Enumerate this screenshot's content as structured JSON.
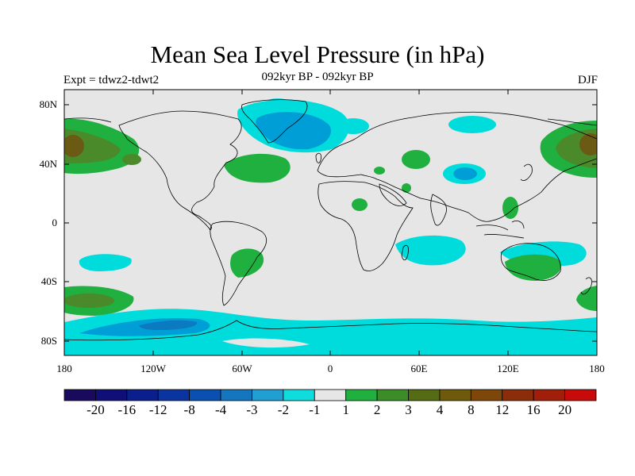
{
  "title": "Mean Sea Level Pressure (in hPa)",
  "subtitle": "092kyr BP - 092kyr BP",
  "experiment": "Expt = tdwz2-tdwt2",
  "season": "DJF",
  "y_ticks": [
    "80N",
    "40N",
    "0",
    "40S",
    "80S"
  ],
  "x_ticks": [
    "180",
    "120W",
    "60W",
    "0",
    "60E",
    "120E",
    "180"
  ],
  "colorbar": {
    "colors": [
      "#1a0a5e",
      "#100f78",
      "#0a1e8e",
      "#0a35a0",
      "#0a50b0",
      "#1576c0",
      "#1f9fd2",
      "#0fdcdc",
      "#e6e6e6",
      "#20b040",
      "#3c8c28",
      "#556b14",
      "#6e5a0a",
      "#7f460a",
      "#8c2d0a",
      "#a01e0a",
      "#c80a0a"
    ],
    "labels": [
      "-20",
      "-16",
      "-12",
      "-8",
      "-4",
      "-3",
      "-2",
      "-1",
      "1",
      "2",
      "3",
      "4",
      "8",
      "12",
      "16",
      "20"
    ]
  },
  "map_colors": {
    "ocean_background": "#e6e6e6",
    "neg1": "#00dcdc",
    "neg2": "#009ed6",
    "neg3": "#0c7ac0",
    "pos1": "#20b040",
    "pos2": "#4a8a2a",
    "pos3": "#6b5a14"
  }
}
